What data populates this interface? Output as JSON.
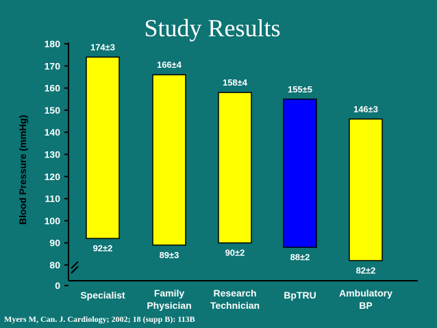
{
  "slide": {
    "title": "Study Results",
    "citation": "Myers M, Can. J. Cardiology; 2002; 18 (supp B): 113B",
    "background": "#0E7474"
  },
  "chart_data": {
    "type": "bar",
    "subtype": "floating-range",
    "ylabel": "Blood Pressure (mmHg)",
    "ylim": [
      80,
      180
    ],
    "axis_break": "between 0 and 80",
    "y_ticks": [
      "0",
      "80",
      "90",
      "100",
      "110",
      "120",
      "130",
      "140",
      "150",
      "160",
      "170",
      "180"
    ],
    "categories": [
      [
        "Specialist"
      ],
      [
        "Family",
        "Physician"
      ],
      [
        "Research",
        "Technician"
      ],
      [
        "BpTRU"
      ],
      [
        "Ambulatory",
        "BP"
      ]
    ],
    "systolic": [
      174,
      166,
      158,
      155,
      146
    ],
    "diastolic": [
      92,
      89,
      90,
      88,
      82
    ],
    "systolic_labels": [
      "174±3",
      "166±4",
      "158±4",
      "155±5",
      "146±3"
    ],
    "diastolic_labels": [
      "92±2",
      "89±3",
      "90±2",
      "88±2",
      "82±2"
    ],
    "colors": [
      "#FFFF00",
      "#FFFF00",
      "#FFFF00",
      "#0000FF",
      "#FFFF00"
    ],
    "bar_outline": "#000000",
    "grid": false
  }
}
